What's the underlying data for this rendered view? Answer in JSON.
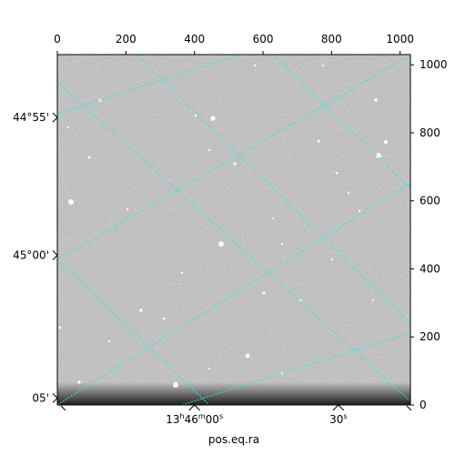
{
  "chart_data": {
    "type": "heatmap",
    "description_kind": "astronomical image with WCS grid overlay",
    "colormap": "gray",
    "grid_color": "#2ee6e0",
    "image_pixels": {
      "xlim": [
        0,
        1030
      ],
      "ylim": [
        0,
        1030
      ]
    },
    "top_ticks": [
      {
        "value": 0,
        "label": "0"
      },
      {
        "value": 200,
        "label": "200"
      },
      {
        "value": 400,
        "label": "400"
      },
      {
        "value": 600,
        "label": "600"
      },
      {
        "value": 800,
        "label": "800"
      },
      {
        "value": 1000,
        "label": "1000"
      }
    ],
    "right_ticks": [
      {
        "value": 0,
        "label": "0"
      },
      {
        "value": 200,
        "label": "200"
      },
      {
        "value": 400,
        "label": "400"
      },
      {
        "value": 600,
        "label": "600"
      },
      {
        "value": 800,
        "label": "800"
      },
      {
        "value": 1000,
        "label": "1000"
      }
    ],
    "ra_ticks": [
      {
        "label_main": "13",
        "sup1": "h",
        "main2": "46",
        "sup2": "m",
        "main3": "00",
        "sup3": "s",
        "pix": 400
      },
      {
        "label_main": "30",
        "sup1": "s",
        "main2": "",
        "sup2": "",
        "main3": "",
        "sup3": "",
        "pix": 820
      }
    ],
    "dec_ticks": [
      {
        "label": "44°55'",
        "pix": 845
      },
      {
        "label": "45°00'",
        "pix": 440
      },
      {
        "label": "05'",
        "pix": 20
      }
    ],
    "xlabel": "pos.eq.ra",
    "ylabel": ""
  }
}
